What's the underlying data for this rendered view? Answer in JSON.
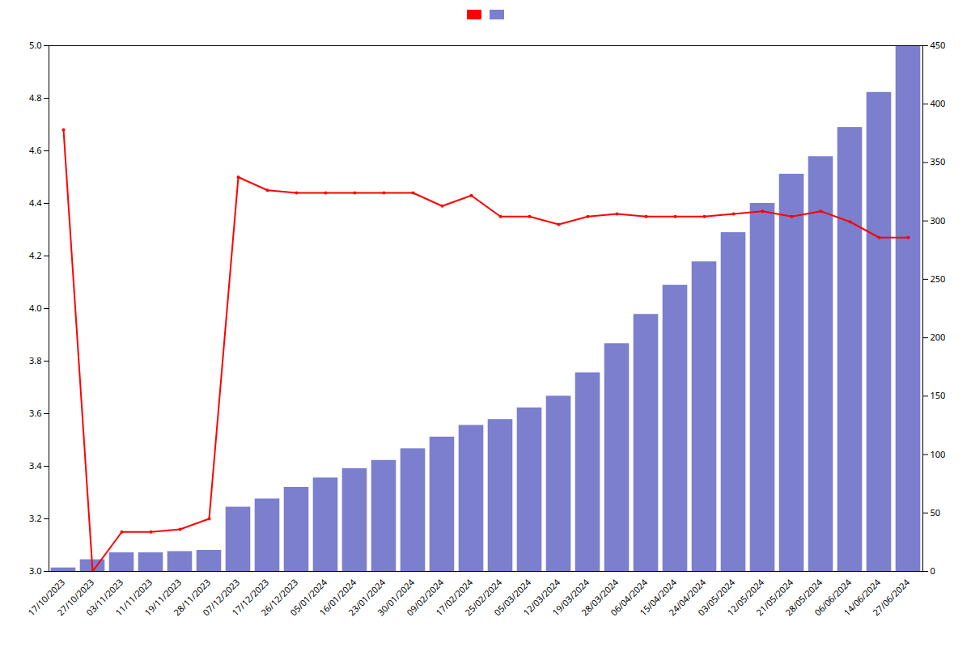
{
  "chart_data": {
    "type": "bar",
    "categories": [
      "17/10/2023",
      "27/10/2023",
      "03/11/2023",
      "11/11/2023",
      "19/11/2023",
      "28/11/2023",
      "07/12/2023",
      "17/12/2023",
      "26/12/2023",
      "05/01/2024",
      "16/01/2024",
      "23/01/2024",
      "30/01/2024",
      "09/02/2024",
      "17/02/2024",
      "25/02/2024",
      "05/03/2024",
      "12/03/2024",
      "19/03/2024",
      "28/03/2024",
      "06/04/2024",
      "15/04/2024",
      "24/04/2024",
      "03/05/2024",
      "12/05/2024",
      "21/05/2024",
      "28/05/2024",
      "06/06/2024",
      "14/06/2024",
      "27/06/2024"
    ],
    "series": [
      {
        "type": "line",
        "color": "#ff0000",
        "marker": "circle",
        "values": [
          4.68,
          3.0,
          3.15,
          3.15,
          3.16,
          3.2,
          4.5,
          4.45,
          4.44,
          4.44,
          4.44,
          4.44,
          4.44,
          4.39,
          4.43,
          4.35,
          4.35,
          4.32,
          4.35,
          4.36,
          4.35,
          4.35,
          4.35,
          4.36,
          4.37,
          4.35,
          4.37,
          4.33,
          4.27,
          4.27
        ]
      },
      {
        "type": "bar",
        "color": "#7b7fce",
        "axis": "y2",
        "values": [
          3,
          10,
          16,
          16,
          17,
          18,
          55,
          62,
          72,
          80,
          88,
          95,
          105,
          115,
          125,
          130,
          140,
          150,
          170,
          195,
          220,
          245,
          265,
          290,
          315,
          340,
          355,
          380,
          410,
          450
        ]
      }
    ],
    "ylim": [
      3.0,
      5.0
    ],
    "yticks": [
      {
        "value": 3.0,
        "label": "3.0"
      },
      3.2,
      3.4,
      3.6,
      3.8,
      {
        "value": 4.0,
        "label": "4.0"
      },
      4.2,
      4.4,
      4.6,
      4.8,
      {
        "value": 5.0,
        "label": "5.0"
      }
    ],
    "y2lim": [
      0,
      450
    ],
    "y2ticks": [
      0,
      50,
      100,
      150,
      200,
      250,
      300,
      350,
      400,
      450
    ],
    "grid": false,
    "legend": "upper center"
  }
}
